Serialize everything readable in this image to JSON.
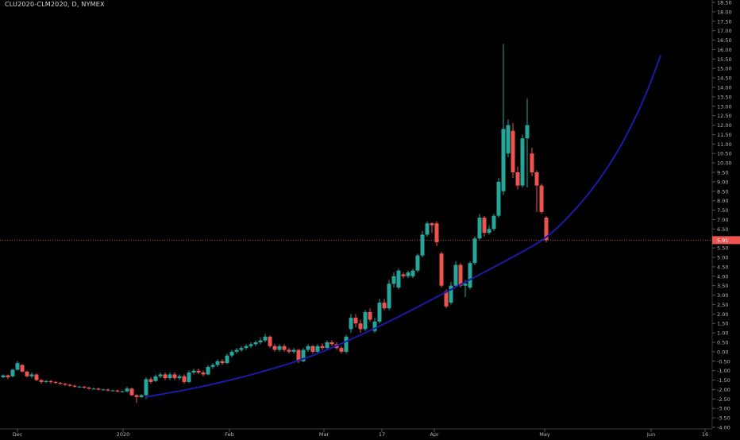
{
  "header": {
    "symbol_title": "CLU2020-CLM2020, D, NYMEX"
  },
  "colors": {
    "background": "#000000",
    "up": "#26a69a",
    "down": "#ef5350",
    "curve": "#1a1aa8",
    "axis_text": "#b2b5be",
    "last_price_bg": "#ef5350"
  },
  "chart_data": {
    "type": "candlestick",
    "title": "CLU2020-CLM2020, D, NYMEX",
    "ylim": [
      -4.0,
      18.5
    ],
    "y_ticks": [
      "-4.00",
      "-3.50",
      "-3.00",
      "-2.50",
      "-2.00",
      "-1.50",
      "-1.00",
      "-0.50",
      "0.00",
      "0.50",
      "1.00",
      "1.50",
      "2.00",
      "2.50",
      "3.00",
      "3.50",
      "4.00",
      "4.50",
      "5.00",
      "5.50",
      "6.00",
      "6.50",
      "7.00",
      "7.50",
      "8.00",
      "8.50",
      "9.00",
      "9.50",
      "10.00",
      "10.50",
      "11.00",
      "11.50",
      "12.00",
      "12.50",
      "13.00",
      "13.50",
      "14.00",
      "14.50",
      "15.00",
      "15.50",
      "16.00",
      "16.50",
      "17.00",
      "17.50",
      "18.00",
      "18.50"
    ],
    "x_ticks": [
      {
        "label": "Dec",
        "x": 22
      },
      {
        "label": "2020",
        "x": 155
      },
      {
        "label": "Feb",
        "x": 289
      },
      {
        "label": "Mar",
        "x": 408
      },
      {
        "label": "17",
        "x": 481
      },
      {
        "label": "Apr",
        "x": 547
      },
      {
        "label": "May",
        "x": 686
      },
      {
        "label": "Jun",
        "x": 820
      },
      {
        "label": "16",
        "x": 888
      }
    ],
    "last_price": "5.91",
    "candles": [
      {
        "x": 4,
        "o": -1.35,
        "c": -1.25,
        "h": -1.2,
        "l": -1.4
      },
      {
        "x": 10,
        "o": -1.25,
        "c": -1.35,
        "h": -1.2,
        "l": -1.45
      },
      {
        "x": 16,
        "o": -1.3,
        "c": -0.95,
        "h": -0.9,
        "l": -1.35
      },
      {
        "x": 22,
        "o": -0.95,
        "c": -0.6,
        "h": -0.5,
        "l": -1.0
      },
      {
        "x": 28,
        "o": -0.7,
        "c": -1.05,
        "h": -0.65,
        "l": -1.1
      },
      {
        "x": 34,
        "o": -1.05,
        "c": -1.3,
        "h": -1.0,
        "l": -1.35
      },
      {
        "x": 40,
        "o": -1.3,
        "c": -1.2,
        "h": -1.1,
        "l": -1.4
      },
      {
        "x": 46,
        "o": -1.2,
        "c": -1.5,
        "h": -1.15,
        "l": -1.55
      },
      {
        "x": 52,
        "o": -1.5,
        "c": -1.6,
        "h": -1.45,
        "l": -1.7
      },
      {
        "x": 58,
        "o": -1.6,
        "c": -1.55,
        "h": -1.5,
        "l": -1.65
      },
      {
        "x": 64,
        "o": -1.55,
        "c": -1.6,
        "h": -1.5,
        "l": -1.7
      },
      {
        "x": 70,
        "o": -1.6,
        "c": -1.65,
        "h": -1.55,
        "l": -1.7
      },
      {
        "x": 76,
        "o": -1.65,
        "c": -1.7,
        "h": -1.6,
        "l": -1.75
      },
      {
        "x": 82,
        "o": -1.7,
        "c": -1.75,
        "h": -1.65,
        "l": -1.8
      },
      {
        "x": 88,
        "o": -1.75,
        "c": -1.8,
        "h": -1.7,
        "l": -1.85
      },
      {
        "x": 94,
        "o": -1.8,
        "c": -1.85,
        "h": -1.75,
        "l": -1.9
      },
      {
        "x": 100,
        "o": -1.85,
        "c": -1.85,
        "h": -1.8,
        "l": -1.9
      },
      {
        "x": 106,
        "o": -1.85,
        "c": -1.9,
        "h": -1.8,
        "l": -1.95
      },
      {
        "x": 112,
        "o": -1.9,
        "c": -1.95,
        "h": -1.85,
        "l": -2.0
      },
      {
        "x": 118,
        "o": -1.95,
        "c": -1.95,
        "h": -1.9,
        "l": -2.0
      },
      {
        "x": 124,
        "o": -1.95,
        "c": -2.0,
        "h": -1.9,
        "l": -2.05
      },
      {
        "x": 130,
        "o": -2.0,
        "c": -2.0,
        "h": -1.95,
        "l": -2.05
      },
      {
        "x": 136,
        "o": -2.0,
        "c": -2.05,
        "h": -1.95,
        "l": -2.1
      },
      {
        "x": 142,
        "o": -2.05,
        "c": -2.05,
        "h": -2.0,
        "l": -2.1
      },
      {
        "x": 148,
        "o": -2.05,
        "c": -2.1,
        "h": -2.0,
        "l": -2.15
      },
      {
        "x": 154,
        "o": -2.1,
        "c": -2.1,
        "h": -2.05,
        "l": -2.15
      },
      {
        "x": 160,
        "o": -2.1,
        "c": -1.95,
        "h": -1.85,
        "l": -2.15
      },
      {
        "x": 166,
        "o": -1.95,
        "c": -2.3,
        "h": -1.9,
        "l": -2.35
      },
      {
        "x": 172,
        "o": -2.3,
        "c": -2.4,
        "h": -2.25,
        "l": -2.7
      },
      {
        "x": 178,
        "o": -2.4,
        "c": -2.3,
        "h": -2.25,
        "l": -2.45
      },
      {
        "x": 184,
        "o": -2.3,
        "c": -1.45,
        "h": -1.35,
        "l": -2.5
      },
      {
        "x": 190,
        "o": -1.45,
        "c": -1.6,
        "h": -1.35,
        "l": -1.7
      },
      {
        "x": 196,
        "o": -1.55,
        "c": -1.3,
        "h": -1.2,
        "l": -1.6
      },
      {
        "x": 202,
        "o": -1.3,
        "c": -1.2,
        "h": -1.1,
        "l": -1.4
      },
      {
        "x": 208,
        "o": -1.2,
        "c": -1.4,
        "h": -1.1,
        "l": -1.5
      },
      {
        "x": 214,
        "o": -1.4,
        "c": -1.2,
        "h": -1.1,
        "l": -1.5
      },
      {
        "x": 220,
        "o": -1.2,
        "c": -1.4,
        "h": -1.1,
        "l": -1.5
      },
      {
        "x": 226,
        "o": -1.4,
        "c": -1.3,
        "h": -1.2,
        "l": -1.5
      },
      {
        "x": 232,
        "o": -1.3,
        "c": -1.6,
        "h": -1.2,
        "l": -1.7
      },
      {
        "x": 238,
        "o": -1.6,
        "c": -1.1,
        "h": -1.0,
        "l": -1.65
      },
      {
        "x": 244,
        "o": -1.1,
        "c": -1.0,
        "h": -0.9,
        "l": -1.2
      },
      {
        "x": 250,
        "o": -1.0,
        "c": -1.1,
        "h": -0.9,
        "l": -1.2
      },
      {
        "x": 256,
        "o": -1.1,
        "c": -1.2,
        "h": -1.0,
        "l": -1.3
      },
      {
        "x": 262,
        "o": -1.2,
        "c": -0.8,
        "h": -0.7,
        "l": -1.25
      },
      {
        "x": 268,
        "o": -0.8,
        "c": -0.7,
        "h": -0.6,
        "l": -0.9
      },
      {
        "x": 274,
        "o": -0.7,
        "c": -0.5,
        "h": -0.4,
        "l": -0.8
      },
      {
        "x": 280,
        "o": -0.5,
        "c": -0.6,
        "h": -0.4,
        "l": -0.7
      },
      {
        "x": 286,
        "o": -0.6,
        "c": -0.2,
        "h": -0.1,
        "l": -0.65
      },
      {
        "x": 292,
        "o": -0.2,
        "c": 0.0,
        "h": 0.1,
        "l": -0.3
      },
      {
        "x": 298,
        "o": 0.0,
        "c": 0.1,
        "h": 0.2,
        "l": -0.1
      },
      {
        "x": 304,
        "o": 0.1,
        "c": 0.2,
        "h": 0.3,
        "l": 0.0
      },
      {
        "x": 310,
        "o": 0.2,
        "c": 0.3,
        "h": 0.4,
        "l": 0.1
      },
      {
        "x": 316,
        "o": 0.3,
        "c": 0.4,
        "h": 0.5,
        "l": 0.2
      },
      {
        "x": 322,
        "o": 0.4,
        "c": 0.5,
        "h": 0.6,
        "l": 0.3
      },
      {
        "x": 328,
        "o": 0.5,
        "c": 0.6,
        "h": 0.75,
        "l": 0.4
      },
      {
        "x": 334,
        "o": 0.6,
        "c": 0.8,
        "h": 0.95,
        "l": 0.5
      },
      {
        "x": 340,
        "o": 0.8,
        "c": 0.3,
        "h": 0.85,
        "l": 0.2
      },
      {
        "x": 346,
        "o": 0.3,
        "c": 0.1,
        "h": 0.4,
        "l": 0.0
      },
      {
        "x": 352,
        "o": 0.1,
        "c": 0.3,
        "h": 0.4,
        "l": 0.0
      },
      {
        "x": 358,
        "o": 0.3,
        "c": 0.1,
        "h": 0.4,
        "l": 0.0
      },
      {
        "x": 364,
        "o": 0.1,
        "c": 0.0,
        "h": 0.2,
        "l": -0.1
      },
      {
        "x": 370,
        "o": 0.0,
        "c": 0.1,
        "h": 0.2,
        "l": -0.1
      },
      {
        "x": 376,
        "o": 0.1,
        "c": -0.5,
        "h": 0.15,
        "l": -0.6
      },
      {
        "x": 382,
        "o": -0.5,
        "c": 0.1,
        "h": 0.2,
        "l": -0.55
      },
      {
        "x": 388,
        "o": 0.1,
        "c": 0.3,
        "h": 0.4,
        "l": 0.0
      },
      {
        "x": 394,
        "o": 0.3,
        "c": 0.0,
        "h": 0.35,
        "l": -0.1
      },
      {
        "x": 400,
        "o": 0.0,
        "c": 0.3,
        "h": 0.4,
        "l": -0.1
      },
      {
        "x": 406,
        "o": 0.3,
        "c": 0.2,
        "h": 0.45,
        "l": 0.1
      },
      {
        "x": 412,
        "o": 0.2,
        "c": 0.5,
        "h": 0.6,
        "l": 0.1
      },
      {
        "x": 418,
        "o": 0.5,
        "c": 0.4,
        "h": 0.6,
        "l": 0.3
      },
      {
        "x": 424,
        "o": 0.4,
        "c": 0.2,
        "h": 0.5,
        "l": 0.1
      },
      {
        "x": 430,
        "o": 0.2,
        "c": 0.0,
        "h": 0.3,
        "l": -0.1
      },
      {
        "x": 436,
        "o": 0.0,
        "c": 0.8,
        "h": 0.9,
        "l": -0.1
      },
      {
        "x": 442,
        "o": 1.2,
        "c": 1.8,
        "h": 2.0,
        "l": 1.0
      },
      {
        "x": 448,
        "o": 1.8,
        "c": 1.5,
        "h": 2.0,
        "l": 1.3
      },
      {
        "x": 454,
        "o": 1.5,
        "c": 1.2,
        "h": 1.7,
        "l": 1.0
      },
      {
        "x": 460,
        "o": 1.2,
        "c": 2.1,
        "h": 2.2,
        "l": 1.1
      },
      {
        "x": 466,
        "o": 2.1,
        "c": 1.7,
        "h": 2.3,
        "l": 1.6
      },
      {
        "x": 472,
        "o": 1.1,
        "c": 1.6,
        "h": 1.8,
        "l": 1.0
      },
      {
        "x": 478,
        "o": 1.6,
        "c": 2.6,
        "h": 2.8,
        "l": 1.5
      },
      {
        "x": 484,
        "o": 2.6,
        "c": 2.3,
        "h": 2.8,
        "l": 2.2
      },
      {
        "x": 490,
        "o": 2.3,
        "c": 3.6,
        "h": 3.8,
        "l": 2.2
      },
      {
        "x": 496,
        "o": 3.6,
        "c": 4.0,
        "h": 4.2,
        "l": 3.4
      },
      {
        "x": 502,
        "o": 3.4,
        "c": 4.3,
        "h": 4.4,
        "l": 3.3
      },
      {
        "x": 508,
        "o": 4.1,
        "c": 4.0,
        "h": 4.2,
        "l": 3.9
      },
      {
        "x": 514,
        "o": 4.0,
        "c": 4.2,
        "h": 4.3,
        "l": 3.9
      },
      {
        "x": 520,
        "o": 4.0,
        "c": 4.3,
        "h": 4.4,
        "l": 3.9
      },
      {
        "x": 526,
        "o": 4.3,
        "c": 5.1,
        "h": 5.2,
        "l": 4.2
      },
      {
        "x": 532,
        "o": 5.1,
        "c": 6.2,
        "h": 6.4,
        "l": 5.0
      },
      {
        "x": 538,
        "o": 6.2,
        "c": 6.8,
        "h": 6.9,
        "l": 6.1
      },
      {
        "x": 544,
        "o": 6.8,
        "c": 6.7,
        "h": 6.85,
        "l": 6.3
      },
      {
        "x": 550,
        "o": 6.8,
        "c": 5.8,
        "h": 6.9,
        "l": 5.6
      },
      {
        "x": 556,
        "o": 5.2,
        "c": 3.5,
        "h": 5.3,
        "l": 3.4
      },
      {
        "x": 562,
        "o": 3.2,
        "c": 2.4,
        "h": 3.3,
        "l": 2.3
      },
      {
        "x": 568,
        "o": 2.6,
        "c": 3.5,
        "h": 3.7,
        "l": 2.5
      },
      {
        "x": 574,
        "o": 3.5,
        "c": 4.6,
        "h": 4.8,
        "l": 3.4
      },
      {
        "x": 580,
        "o": 4.6,
        "c": 3.5,
        "h": 4.7,
        "l": 3.4
      },
      {
        "x": 586,
        "o": 3.5,
        "c": 3.6,
        "h": 3.8,
        "l": 2.9
      },
      {
        "x": 592,
        "o": 3.4,
        "c": 4.7,
        "h": 4.8,
        "l": 3.3
      },
      {
        "x": 598,
        "o": 4.7,
        "c": 6.0,
        "h": 6.1,
        "l": 4.6
      },
      {
        "x": 604,
        "o": 6.0,
        "c": 7.1,
        "h": 7.3,
        "l": 5.9
      },
      {
        "x": 610,
        "o": 7.1,
        "c": 6.3,
        "h": 7.2,
        "l": 6.1
      },
      {
        "x": 616,
        "o": 6.3,
        "c": 6.5,
        "h": 6.7,
        "l": 6.2
      },
      {
        "x": 622,
        "o": 6.5,
        "c": 7.2,
        "h": 7.3,
        "l": 6.4
      },
      {
        "x": 628,
        "o": 7.2,
        "c": 9.0,
        "h": 9.2,
        "l": 7.1
      },
      {
        "x": 634,
        "o": 8.5,
        "c": 11.8,
        "h": 16.3,
        "l": 8.3
      },
      {
        "x": 640,
        "o": 10.5,
        "c": 12.0,
        "h": 12.3,
        "l": 10.3
      },
      {
        "x": 646,
        "o": 11.7,
        "c": 9.5,
        "h": 12.1,
        "l": 9.2
      },
      {
        "x": 652,
        "o": 9.5,
        "c": 8.8,
        "h": 9.8,
        "l": 8.6
      },
      {
        "x": 658,
        "o": 8.8,
        "c": 11.3,
        "h": 11.5,
        "l": 8.7
      },
      {
        "x": 664,
        "o": 11.3,
        "c": 12.0,
        "h": 13.4,
        "l": 8.7
      },
      {
        "x": 670,
        "o": 10.5,
        "c": 9.5,
        "h": 10.8,
        "l": 9.3
      },
      {
        "x": 676,
        "o": 9.5,
        "c": 8.8,
        "h": 9.6,
        "l": 7.4
      },
      {
        "x": 682,
        "o": 8.8,
        "c": 7.4,
        "h": 8.9,
        "l": 7.3
      },
      {
        "x": 688,
        "o": 7.1,
        "c": 5.91,
        "h": 7.2,
        "l": 5.8
      }
    ],
    "curve": [
      {
        "x": 183,
        "y": -2.4
      },
      {
        "x": 250,
        "y": -1.9
      },
      {
        "x": 320,
        "y": -1.2
      },
      {
        "x": 390,
        "y": -0.3
      },
      {
        "x": 450,
        "y": 0.8
      },
      {
        "x": 500,
        "y": 1.8
      },
      {
        "x": 550,
        "y": 2.9
      },
      {
        "x": 600,
        "y": 4.0
      },
      {
        "x": 650,
        "y": 5.1
      },
      {
        "x": 688,
        "y": 6.0
      },
      {
        "x": 720,
        "y": 7.3
      },
      {
        "x": 750,
        "y": 8.8
      },
      {
        "x": 780,
        "y": 10.7
      },
      {
        "x": 805,
        "y": 12.8
      },
      {
        "x": 820,
        "y": 14.3
      },
      {
        "x": 832,
        "y": 15.7
      }
    ]
  }
}
